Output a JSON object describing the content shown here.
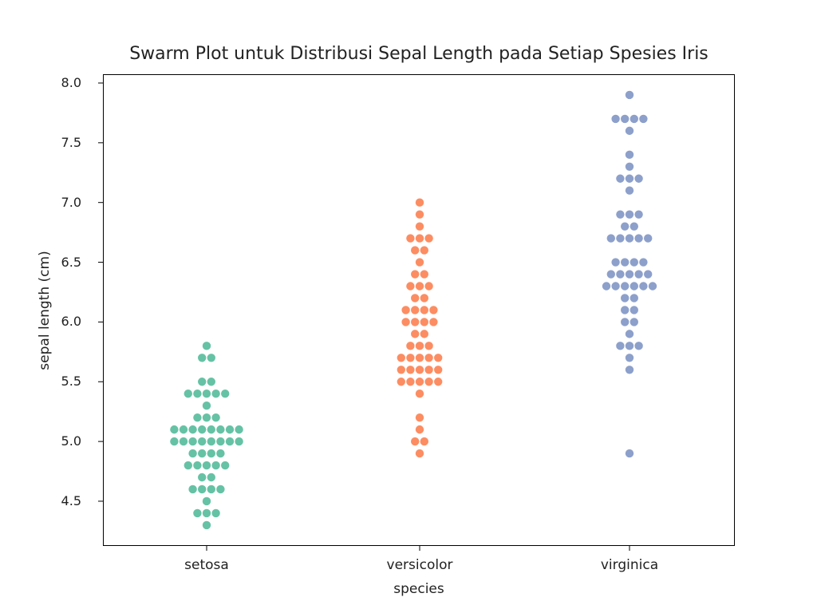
{
  "chart_data": {
    "type": "scatter",
    "subtype": "swarm",
    "title": "Swarm Plot untuk Distribusi Sepal Length pada Setiap Spesies Iris",
    "xlabel": "species",
    "ylabel": "sepal length (cm)",
    "categories": [
      "setosa",
      "versicolor",
      "virginica"
    ],
    "yticks": [
      "4.5",
      "5.0",
      "5.5",
      "6.0",
      "6.5",
      "7.0",
      "7.5",
      "8.0"
    ],
    "ylim": [
      4.17,
      8.07
    ],
    "grid": false,
    "legend": null,
    "series": [
      {
        "name": "setosa",
        "color": "#66c2a5",
        "value_counts": {
          "4.3": 1,
          "4.4": 3,
          "4.5": 1,
          "4.6": 4,
          "4.7": 2,
          "4.8": 5,
          "4.9": 4,
          "5.0": 8,
          "5.1": 8,
          "5.2": 3,
          "5.3": 1,
          "5.4": 5,
          "5.5": 2,
          "5.7": 2,
          "5.8": 1
        }
      },
      {
        "name": "versicolor",
        "color": "#fc8d62",
        "value_counts": {
          "4.9": 1,
          "5.0": 2,
          "5.1": 1,
          "5.2": 1,
          "5.4": 1,
          "5.5": 5,
          "5.6": 5,
          "5.7": 5,
          "5.8": 3,
          "5.9": 2,
          "6.0": 4,
          "6.1": 4,
          "6.2": 2,
          "6.3": 3,
          "6.4": 2,
          "6.5": 1,
          "6.6": 2,
          "6.7": 3,
          "6.8": 1,
          "6.9": 1,
          "7.0": 1
        }
      },
      {
        "name": "virginica",
        "color": "#8da0cb",
        "value_counts": {
          "4.9": 1,
          "5.6": 1,
          "5.7": 1,
          "5.8": 3,
          "5.9": 1,
          "6.0": 2,
          "6.1": 2,
          "6.2": 2,
          "6.3": 6,
          "6.4": 5,
          "6.5": 4,
          "6.7": 5,
          "6.8": 2,
          "6.9": 3,
          "7.1": 1,
          "7.2": 3,
          "7.3": 1,
          "7.4": 1,
          "7.6": 1,
          "7.7": 4,
          "7.9": 1
        }
      }
    ]
  }
}
